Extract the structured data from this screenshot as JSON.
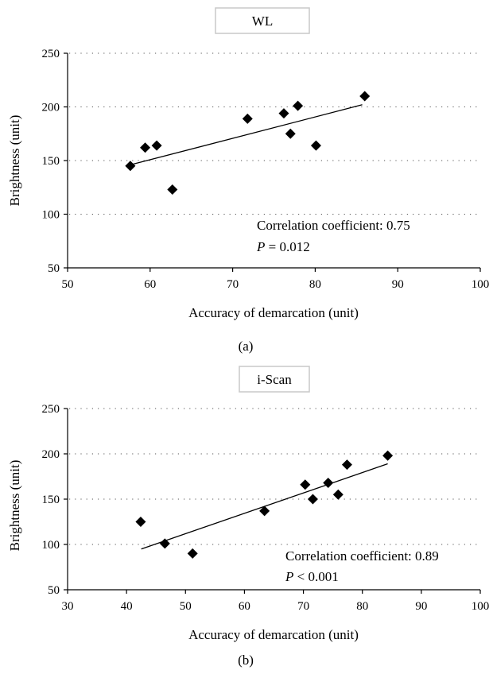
{
  "chart_data": [
    {
      "type": "scatter",
      "title": "WL",
      "panel_label": "(a)",
      "xlabel": "Accuracy of demarcation (unit)",
      "ylabel": "Brightness (unit)",
      "xlim": [
        50,
        100
      ],
      "ylim": [
        50,
        250
      ],
      "xticks": [
        50,
        60,
        70,
        80,
        90,
        100
      ],
      "yticks": [
        50,
        100,
        150,
        200,
        250
      ],
      "grid": "horizontal dotted",
      "points": [
        {
          "x": 57.6,
          "y": 145
        },
        {
          "x": 59.4,
          "y": 162
        },
        {
          "x": 60.8,
          "y": 164
        },
        {
          "x": 62.7,
          "y": 123
        },
        {
          "x": 71.8,
          "y": 189
        },
        {
          "x": 76.2,
          "y": 194
        },
        {
          "x": 77.0,
          "y": 175
        },
        {
          "x": 77.9,
          "y": 201
        },
        {
          "x": 80.1,
          "y": 164
        },
        {
          "x": 86.0,
          "y": 210
        }
      ],
      "trendline": {
        "x1": 57.6,
        "y1": 146,
        "x2": 85.7,
        "y2": 202
      },
      "annotation_line1": "Correlation coefficient: 0.75",
      "annotation_p_letter": "P",
      "annotation_p_rest": " = 0.012"
    },
    {
      "type": "scatter",
      "title": "i-Scan",
      "panel_label": "(b)",
      "xlabel": "Accuracy of demarcation (unit)",
      "ylabel": "Brightness (unit)",
      "xlim": [
        30,
        100
      ],
      "ylim": [
        50,
        250
      ],
      "xticks": [
        30,
        40,
        50,
        60,
        70,
        80,
        90,
        100
      ],
      "yticks": [
        50,
        100,
        150,
        200,
        250
      ],
      "grid": "horizontal dotted",
      "points": [
        {
          "x": 42.4,
          "y": 125
        },
        {
          "x": 46.5,
          "y": 101
        },
        {
          "x": 51.2,
          "y": 90
        },
        {
          "x": 63.4,
          "y": 137
        },
        {
          "x": 70.3,
          "y": 166
        },
        {
          "x": 71.6,
          "y": 150
        },
        {
          "x": 74.2,
          "y": 168
        },
        {
          "x": 75.9,
          "y": 155
        },
        {
          "x": 77.4,
          "y": 188
        },
        {
          "x": 84.3,
          "y": 198
        }
      ],
      "trendline": {
        "x1": 42.5,
        "y1": 95,
        "x2": 84.3,
        "y2": 189
      },
      "annotation_line1": "Correlation coefficient: 0.89",
      "annotation_p_letter": "P",
      "annotation_p_rest": " < 0.001"
    }
  ]
}
